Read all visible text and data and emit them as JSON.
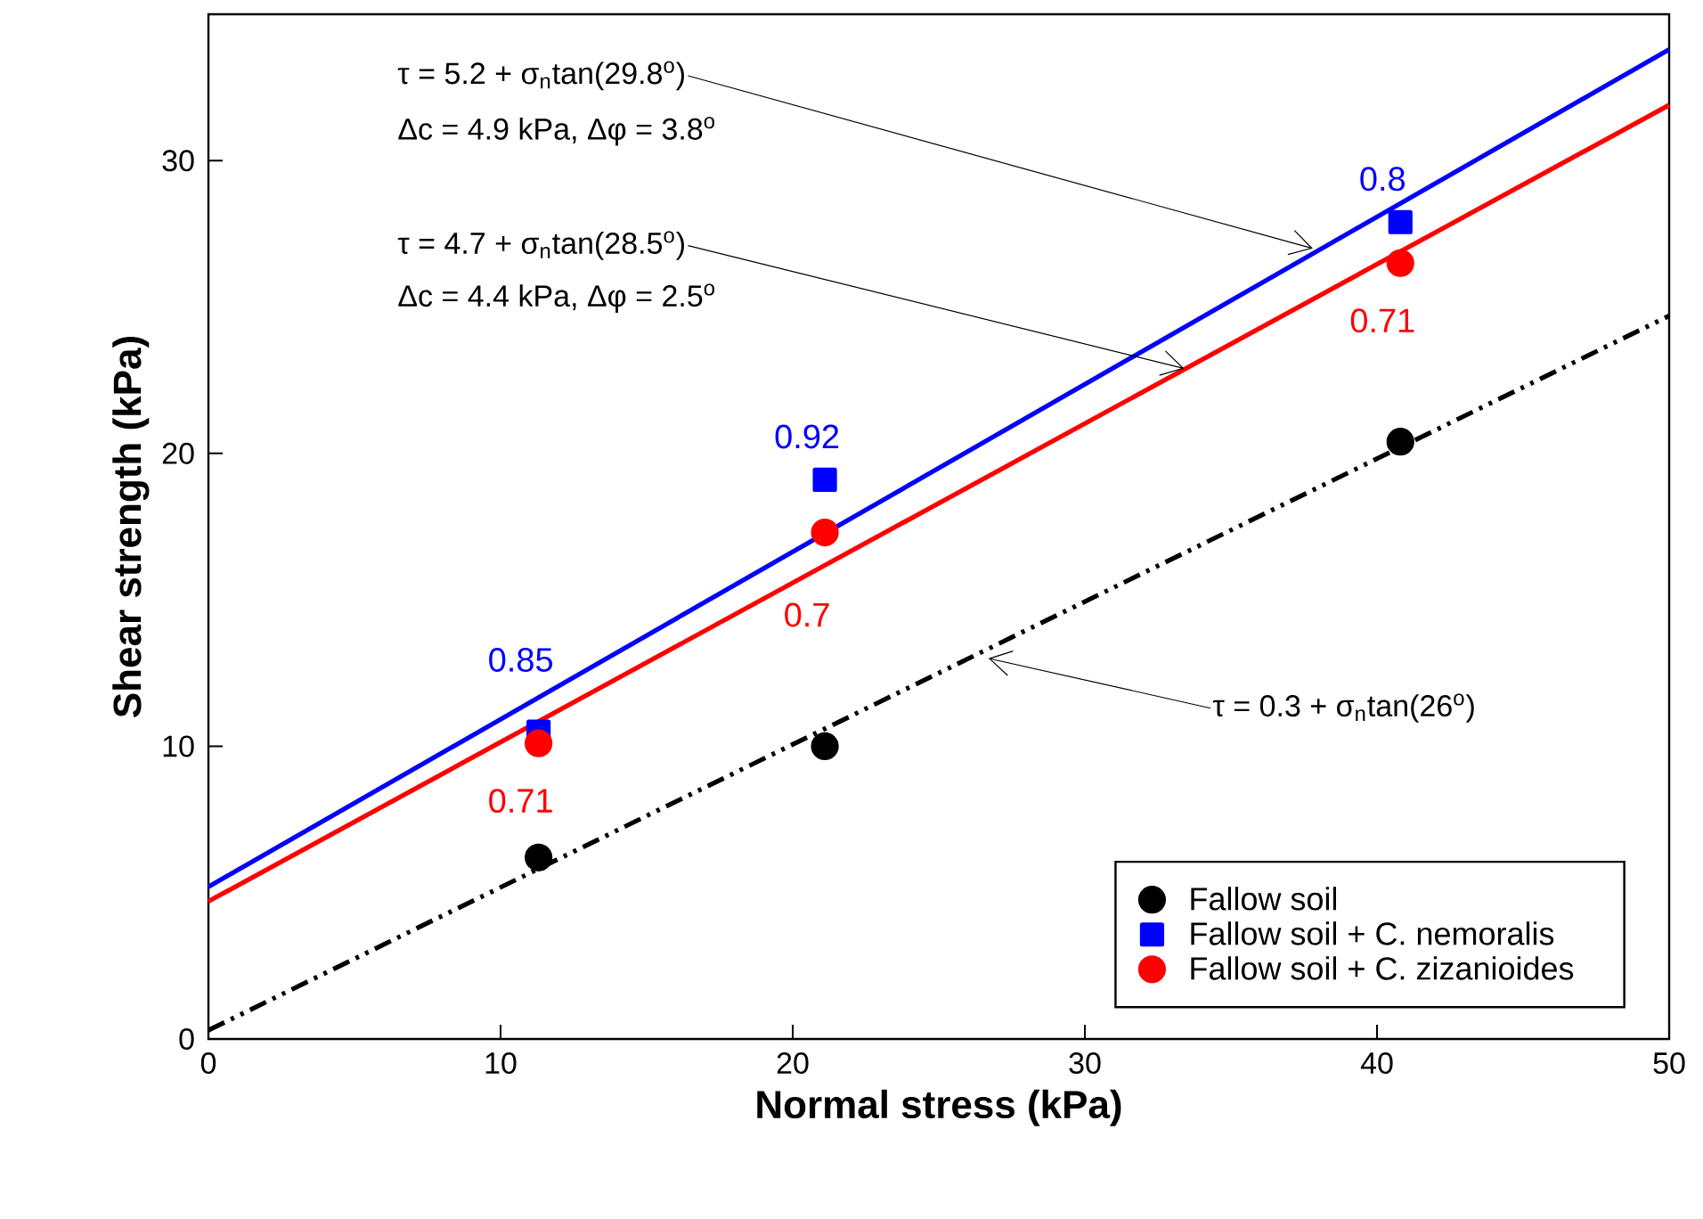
{
  "chart_data": {
    "type": "scatter",
    "xlabel": "Normal stress (kPa)",
    "ylabel": "Shear strength (kPa)",
    "xlim": [
      0,
      50
    ],
    "ylim": [
      0,
      35
    ],
    "xticks": [
      0,
      10,
      20,
      30,
      40,
      50
    ],
    "yticks": [
      0,
      10,
      20,
      30
    ],
    "legend": "bottom right",
    "grid": false,
    "series": [
      {
        "name": "Fallow soil",
        "color": "#000000",
        "marker": "circle",
        "x": [
          11.3,
          21.1,
          40.8
        ],
        "values": [
          6.2,
          10.0,
          20.4
        ]
      },
      {
        "name": "Fallow soil + C. nemoralis",
        "color": "#0000ff",
        "marker": "square",
        "x": [
          11.3,
          21.1,
          40.8
        ],
        "values": [
          10.5,
          19.1,
          27.9
        ]
      },
      {
        "name": "Fallow soil + C. zizanioides",
        "color": "#ff0000",
        "marker": "circle",
        "x": [
          11.3,
          21.1,
          40.8
        ],
        "values": [
          10.1,
          17.3,
          26.5
        ]
      },
      {
        "type": "line",
        "color": "#000000",
        "line_style": "dashed",
        "marker": "none",
        "x": [
          0,
          50
        ],
        "values": [
          0.3,
          24.7
        ]
      },
      {
        "type": "line",
        "color": "#0000ff",
        "line_style": "solid",
        "marker": "none",
        "x": [
          0,
          50
        ],
        "values": [
          5.2,
          33.8
        ]
      },
      {
        "type": "line",
        "color": "#ff0000",
        "line_style": "solid",
        "marker": "none",
        "x": [
          0,
          50
        ],
        "values": [
          4.7,
          31.9
        ]
      }
    ],
    "annotations": [
      {
        "text": "τ = 5.2 + σ$_{n}$tan(29.8$^{o}$)",
        "x": 37.8,
        "y": 27.0
      },
      "Δc = 4.9 kPa, Δφ = 3.8$^{o}$",
      {
        "text": "τ = 4.7 + σ$_{n}$tan(28.5$^{o}$)",
        "x": 33.4,
        "y": 22.9
      },
      "Δc = 4.4 kPa, Δφ = 2.5$^{o}$",
      {
        "text": "τ = 0.3 + σ$_{n}$tan(26$^{o}$)",
        "x": 26.7,
        "y": 13.0
      },
      {
        "text": "0.85",
        "x": 11.3,
        "y": 10.5
      },
      {
        "text": "0.92",
        "x": 21.1,
        "y": 19.1
      },
      {
        "text": "0.8",
        "x": 40.8,
        "y": 27.9
      },
      {
        "text": "0.71",
        "x": 11.3,
        "y": 10.1
      },
      {
        "text": "0.7",
        "x": 21.1,
        "y": 17.3
      },
      {
        "text": "0.71",
        "x": 40.8,
        "y": 26.5
      }
    ]
  }
}
